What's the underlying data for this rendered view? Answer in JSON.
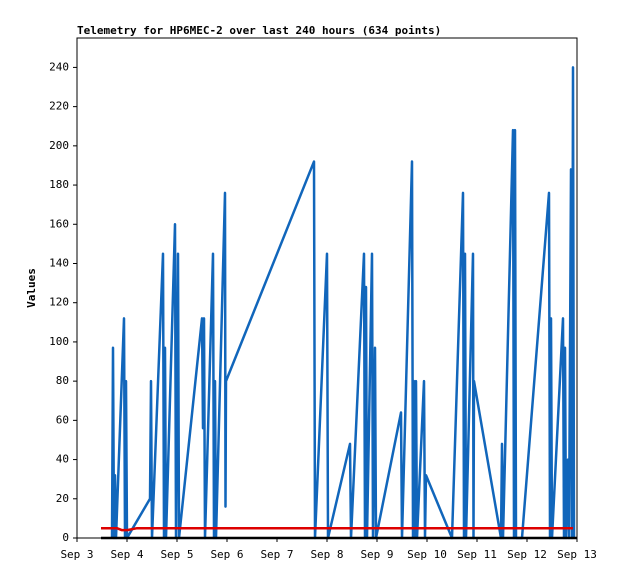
{
  "chart_data": {
    "type": "line",
    "title": "Telemetry for HP6MEC-2 over last 240 hours (634 points)",
    "y_label": "Values",
    "xlim": [
      3,
      13
    ],
    "ylim": [
      0,
      255
    ],
    "xticks": [
      {
        "value": 3,
        "label": "Sep 3"
      },
      {
        "value": 4,
        "label": "Sep 4"
      },
      {
        "value": 5,
        "label": "Sep 5"
      },
      {
        "value": 6,
        "label": "Sep 6"
      },
      {
        "value": 7,
        "label": "Sep 7"
      },
      {
        "value": 8,
        "label": "Sep 8"
      },
      {
        "value": 9,
        "label": "Sep 9"
      },
      {
        "value": 10,
        "label": "Sep 10"
      },
      {
        "value": 11,
        "label": "Sep 11"
      },
      {
        "value": 12,
        "label": "Sep 12"
      },
      {
        "value": 13,
        "label": "Sep 13"
      }
    ],
    "yticks": [
      0,
      20,
      40,
      60,
      80,
      100,
      120,
      140,
      160,
      180,
      200,
      220,
      240
    ],
    "grid": false,
    "series": [
      {
        "color": "#1166bb",
        "x": [
          3.7,
          3.72,
          3.74,
          3.76,
          3.78,
          3.94,
          3.96,
          3.98,
          4.0,
          4.46,
          4.48,
          4.5,
          4.72,
          4.74,
          4.76,
          4.78,
          4.96,
          4.98,
          5.02,
          5.04,
          5.5,
          5.52,
          5.54,
          5.56,
          5.72,
          5.74,
          5.76,
          5.78,
          5.96,
          5.97,
          5.98,
          7.74,
          7.76,
          8.0,
          8.02,
          8.46,
          8.48,
          8.74,
          8.76,
          8.78,
          8.8,
          8.9,
          8.92,
          8.96,
          8.98,
          9.48,
          9.5,
          9.7,
          9.72,
          9.74,
          9.76,
          9.78,
          9.8,
          9.94,
          9.96,
          9.98,
          10.5,
          10.72,
          10.74,
          10.76,
          10.78,
          10.92,
          10.93,
          10.94,
          11.48,
          11.5,
          11.52,
          11.72,
          11.74,
          11.76,
          11.78,
          11.9,
          12.44,
          12.46,
          12.48,
          12.5,
          12.72,
          12.74,
          12.76,
          12.78,
          12.82,
          12.84,
          12.88,
          12.9,
          12.92,
          12.94
        ],
        "values": [
          0,
          97,
          0,
          32,
          0,
          112,
          0,
          80,
          0,
          20,
          80,
          0,
          145,
          0,
          97,
          0,
          160,
          0,
          145,
          0,
          112,
          56,
          112,
          0,
          145,
          0,
          80,
          0,
          176,
          16,
          80,
          192,
          0,
          145,
          0,
          48,
          0,
          145,
          0,
          128,
          0,
          145,
          0,
          97,
          0,
          64,
          0,
          192,
          0,
          80,
          0,
          80,
          0,
          80,
          0,
          32,
          0,
          176,
          0,
          145,
          0,
          145,
          0,
          80,
          0,
          48,
          0,
          208,
          0,
          208,
          0,
          0,
          176,
          0,
          112,
          0,
          112,
          0,
          97,
          0,
          40,
          0,
          188,
          0,
          240,
          0
        ]
      },
      {
        "color": "#dd0000",
        "x": [
          3.48,
          3.8,
          3.9,
          4.0,
          4.2,
          12.92
        ],
        "values": [
          5,
          5,
          4,
          4,
          5,
          5
        ]
      },
      {
        "color": "#000000",
        "x": [
          3.48,
          13
        ],
        "values": [
          0,
          0
        ]
      }
    ]
  }
}
